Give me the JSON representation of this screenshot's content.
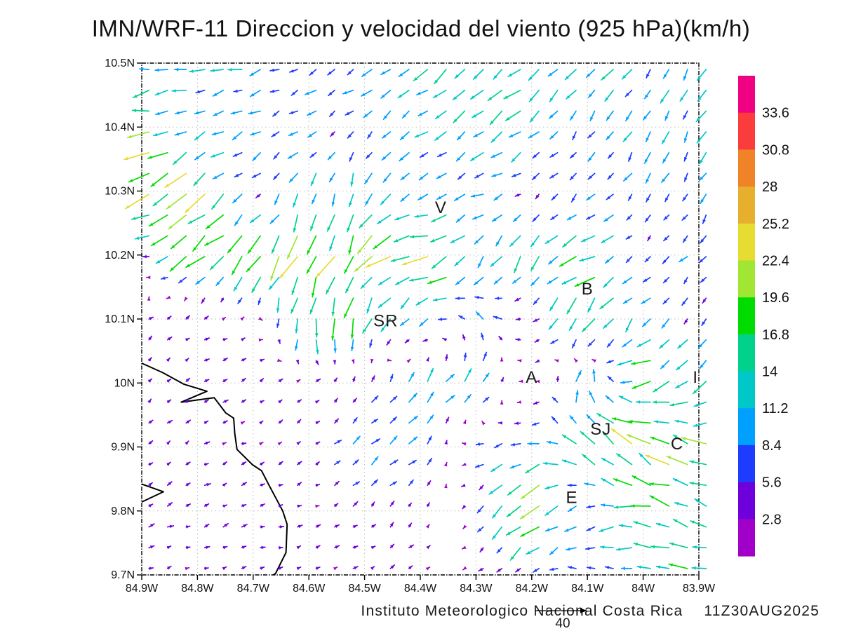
{
  "title": "IMN/WRF-11 Direccion y velocidad del viento (925 hPa)(km/h)",
  "footer": {
    "credit": "Instituto Meteorologico Nacional Costa Rica",
    "timestamp": "11Z30AUG2025",
    "reference_value": "40"
  },
  "chart_data": {
    "type": "vector-field-map",
    "variable": "wind direction and speed",
    "level": "925 hPa",
    "units": "km/h",
    "lon_left_w": 84.9,
    "lon_right_w": 83.9,
    "lat_top_n": 10.5,
    "lat_bottom_n": 9.7,
    "grid_on": true,
    "x_tick_labels": [
      "84.9W",
      "84.8W",
      "84.7W",
      "84.6W",
      "84.5W",
      "84.4W",
      "84.3W",
      "84.2W",
      "84.1W",
      "84W",
      "83.9W"
    ],
    "y_tick_labels": [
      "10.5N",
      "10.4N",
      "10.3N",
      "10.2N",
      "10.1N",
      "10N",
      "9.9N",
      "9.8N",
      "9.7N"
    ],
    "lon_grid_w": [
      84.9,
      84.8,
      84.7,
      84.6,
      84.5,
      84.4,
      84.3,
      84.2,
      84.1,
      84.0,
      83.9
    ],
    "lat_grid_n": [
      10.5,
      10.4,
      10.3,
      10.2,
      10.1,
      10.0,
      9.9,
      9.8,
      9.7
    ],
    "reference_arrow_kmh": 40,
    "colorbar": {
      "position": "right",
      "levels": [
        2.8,
        5.6,
        8.4,
        11.2,
        14,
        16.8,
        19.6,
        22.4,
        25.2,
        28,
        30.8,
        33.6
      ],
      "labels": [
        "2.8",
        "5.6",
        "8.4",
        "11.2",
        "14",
        "16.8",
        "19.6",
        "22.4",
        "25.2",
        "28",
        "30.8",
        "33.6"
      ],
      "colors": [
        "#A000C8",
        "#6E00DC",
        "#1E3CFF",
        "#00A0FF",
        "#00C8C8",
        "#00D28C",
        "#00DC00",
        "#A0E632",
        "#E6DC32",
        "#E6AF2D",
        "#F08228",
        "#FA3C3C",
        "#F00082"
      ]
    },
    "wind_uv_kmh": [
      [
        [
          -10,
          -2
        ],
        [
          -11,
          -3
        ],
        [
          -9,
          -2
        ],
        [
          -8,
          -4
        ],
        [
          -7,
          -5
        ],
        [
          -10,
          -7
        ],
        [
          -11,
          -8
        ],
        [
          -10,
          -8
        ],
        [
          -8,
          -8
        ],
        [
          -7,
          -8
        ],
        [
          -6,
          -9
        ]
      ],
      [
        [
          -16,
          -3
        ],
        [
          -7,
          -3
        ],
        [
          -8,
          -5
        ],
        [
          -6,
          -3
        ],
        [
          -5,
          -4
        ],
        [
          -9,
          -6
        ],
        [
          -10,
          -7
        ],
        [
          -9,
          -8
        ],
        [
          -5,
          -7
        ],
        [
          -5,
          -8
        ],
        [
          -5,
          -9
        ]
      ],
      [
        [
          -20,
          -10
        ],
        [
          -16,
          -12
        ],
        [
          -4,
          -3
        ],
        [
          -3,
          -10
        ],
        [
          -4,
          -12
        ],
        [
          -7,
          -4
        ],
        [
          -9,
          -3
        ],
        [
          -4,
          -3
        ],
        [
          -4,
          -5
        ],
        [
          -4,
          -6
        ],
        [
          -4,
          -7
        ]
      ],
      [
        [
          -4,
          2
        ],
        [
          -14,
          -13
        ],
        [
          -13,
          -14
        ],
        [
          -8,
          -19
        ],
        [
          -10,
          -15
        ],
        [
          -20,
          -5
        ],
        [
          -8,
          -10
        ],
        [
          -6,
          -10
        ],
        [
          -14,
          -7
        ],
        [
          -4,
          -4
        ],
        [
          -5,
          -5
        ]
      ],
      [
        [
          3,
          2
        ],
        [
          3,
          2
        ],
        [
          2,
          1
        ],
        [
          -2,
          -16
        ],
        [
          -4,
          -14
        ],
        [
          -8,
          -8
        ],
        [
          -6,
          7
        ],
        [
          -4,
          -2
        ],
        [
          -9,
          -15
        ],
        [
          -7,
          -7
        ],
        [
          -4,
          -4
        ]
      ],
      [
        [
          3,
          3
        ],
        [
          3,
          2
        ],
        [
          3,
          2
        ],
        [
          3,
          2
        ],
        [
          2,
          4
        ],
        [
          6,
          8
        ],
        [
          8,
          8
        ],
        [
          -3,
          -2
        ],
        [
          4,
          12
        ],
        [
          -16,
          -4
        ],
        [
          -8,
          -10
        ]
      ],
      [
        [
          3,
          2
        ],
        [
          3,
          2
        ],
        [
          3,
          1
        ],
        [
          3,
          2
        ],
        [
          6,
          5
        ],
        [
          6,
          6
        ],
        [
          -5,
          -2
        ],
        [
          -8,
          -3
        ],
        [
          -10,
          10
        ],
        [
          -14,
          12
        ],
        [
          -18,
          6
        ]
      ],
      [
        [
          4,
          2
        ],
        [
          4,
          2
        ],
        [
          4,
          1
        ],
        [
          3,
          1
        ],
        [
          3,
          3
        ],
        [
          2,
          3
        ],
        [
          -3,
          -3
        ],
        [
          -19,
          -15
        ],
        [
          -6,
          -4
        ],
        [
          -17,
          2
        ],
        [
          -12,
          4
        ]
      ],
      [
        [
          3,
          1
        ],
        [
          3,
          1
        ],
        [
          3,
          1
        ],
        [
          3,
          1
        ],
        [
          3,
          2
        ],
        [
          3,
          2
        ],
        [
          -3,
          -2
        ],
        [
          -4,
          -2
        ],
        [
          -6,
          2
        ],
        [
          -8,
          2
        ],
        [
          -14,
          2
        ]
      ]
    ],
    "station_labels": [
      {
        "text": "V",
        "lon_w": 84.363,
        "lat_n": 10.274
      },
      {
        "text": "B",
        "lon_w": 84.1,
        "lat_n": 10.147
      },
      {
        "text": "SR",
        "lon_w": 84.462,
        "lat_n": 10.097
      },
      {
        "text": "A",
        "lon_w": 84.2,
        "lat_n": 10.009
      },
      {
        "text": "SJ",
        "lon_w": 84.076,
        "lat_n": 9.928
      },
      {
        "text": "C",
        "lon_w": 83.939,
        "lat_n": 9.905
      },
      {
        "text": "E",
        "lon_w": 84.128,
        "lat_n": 9.821
      },
      {
        "text": "I",
        "lon_w": 83.906,
        "lat_n": 10.009
      }
    ],
    "coastline_lonlat": [
      [
        84.9,
        10.031
      ],
      [
        84.862,
        10.016
      ],
      [
        84.824,
        9.998
      ],
      [
        84.783,
        9.987
      ],
      [
        84.829,
        9.97
      ],
      [
        84.77,
        9.977
      ],
      [
        84.749,
        9.953
      ],
      [
        84.735,
        9.945
      ],
      [
        84.733,
        9.921
      ],
      [
        84.729,
        9.896
      ],
      [
        84.701,
        9.872
      ],
      [
        84.685,
        9.863
      ],
      [
        84.672,
        9.841
      ],
      [
        84.647,
        9.8
      ],
      [
        84.639,
        9.779
      ],
      [
        84.641,
        9.735
      ],
      [
        84.66,
        9.702
      ],
      [
        84.664,
        9.7
      ]
    ],
    "coast_islet_lonlat": [
      [
        84.9,
        9.842
      ],
      [
        84.861,
        9.83
      ],
      [
        84.9,
        9.814
      ]
    ]
  }
}
